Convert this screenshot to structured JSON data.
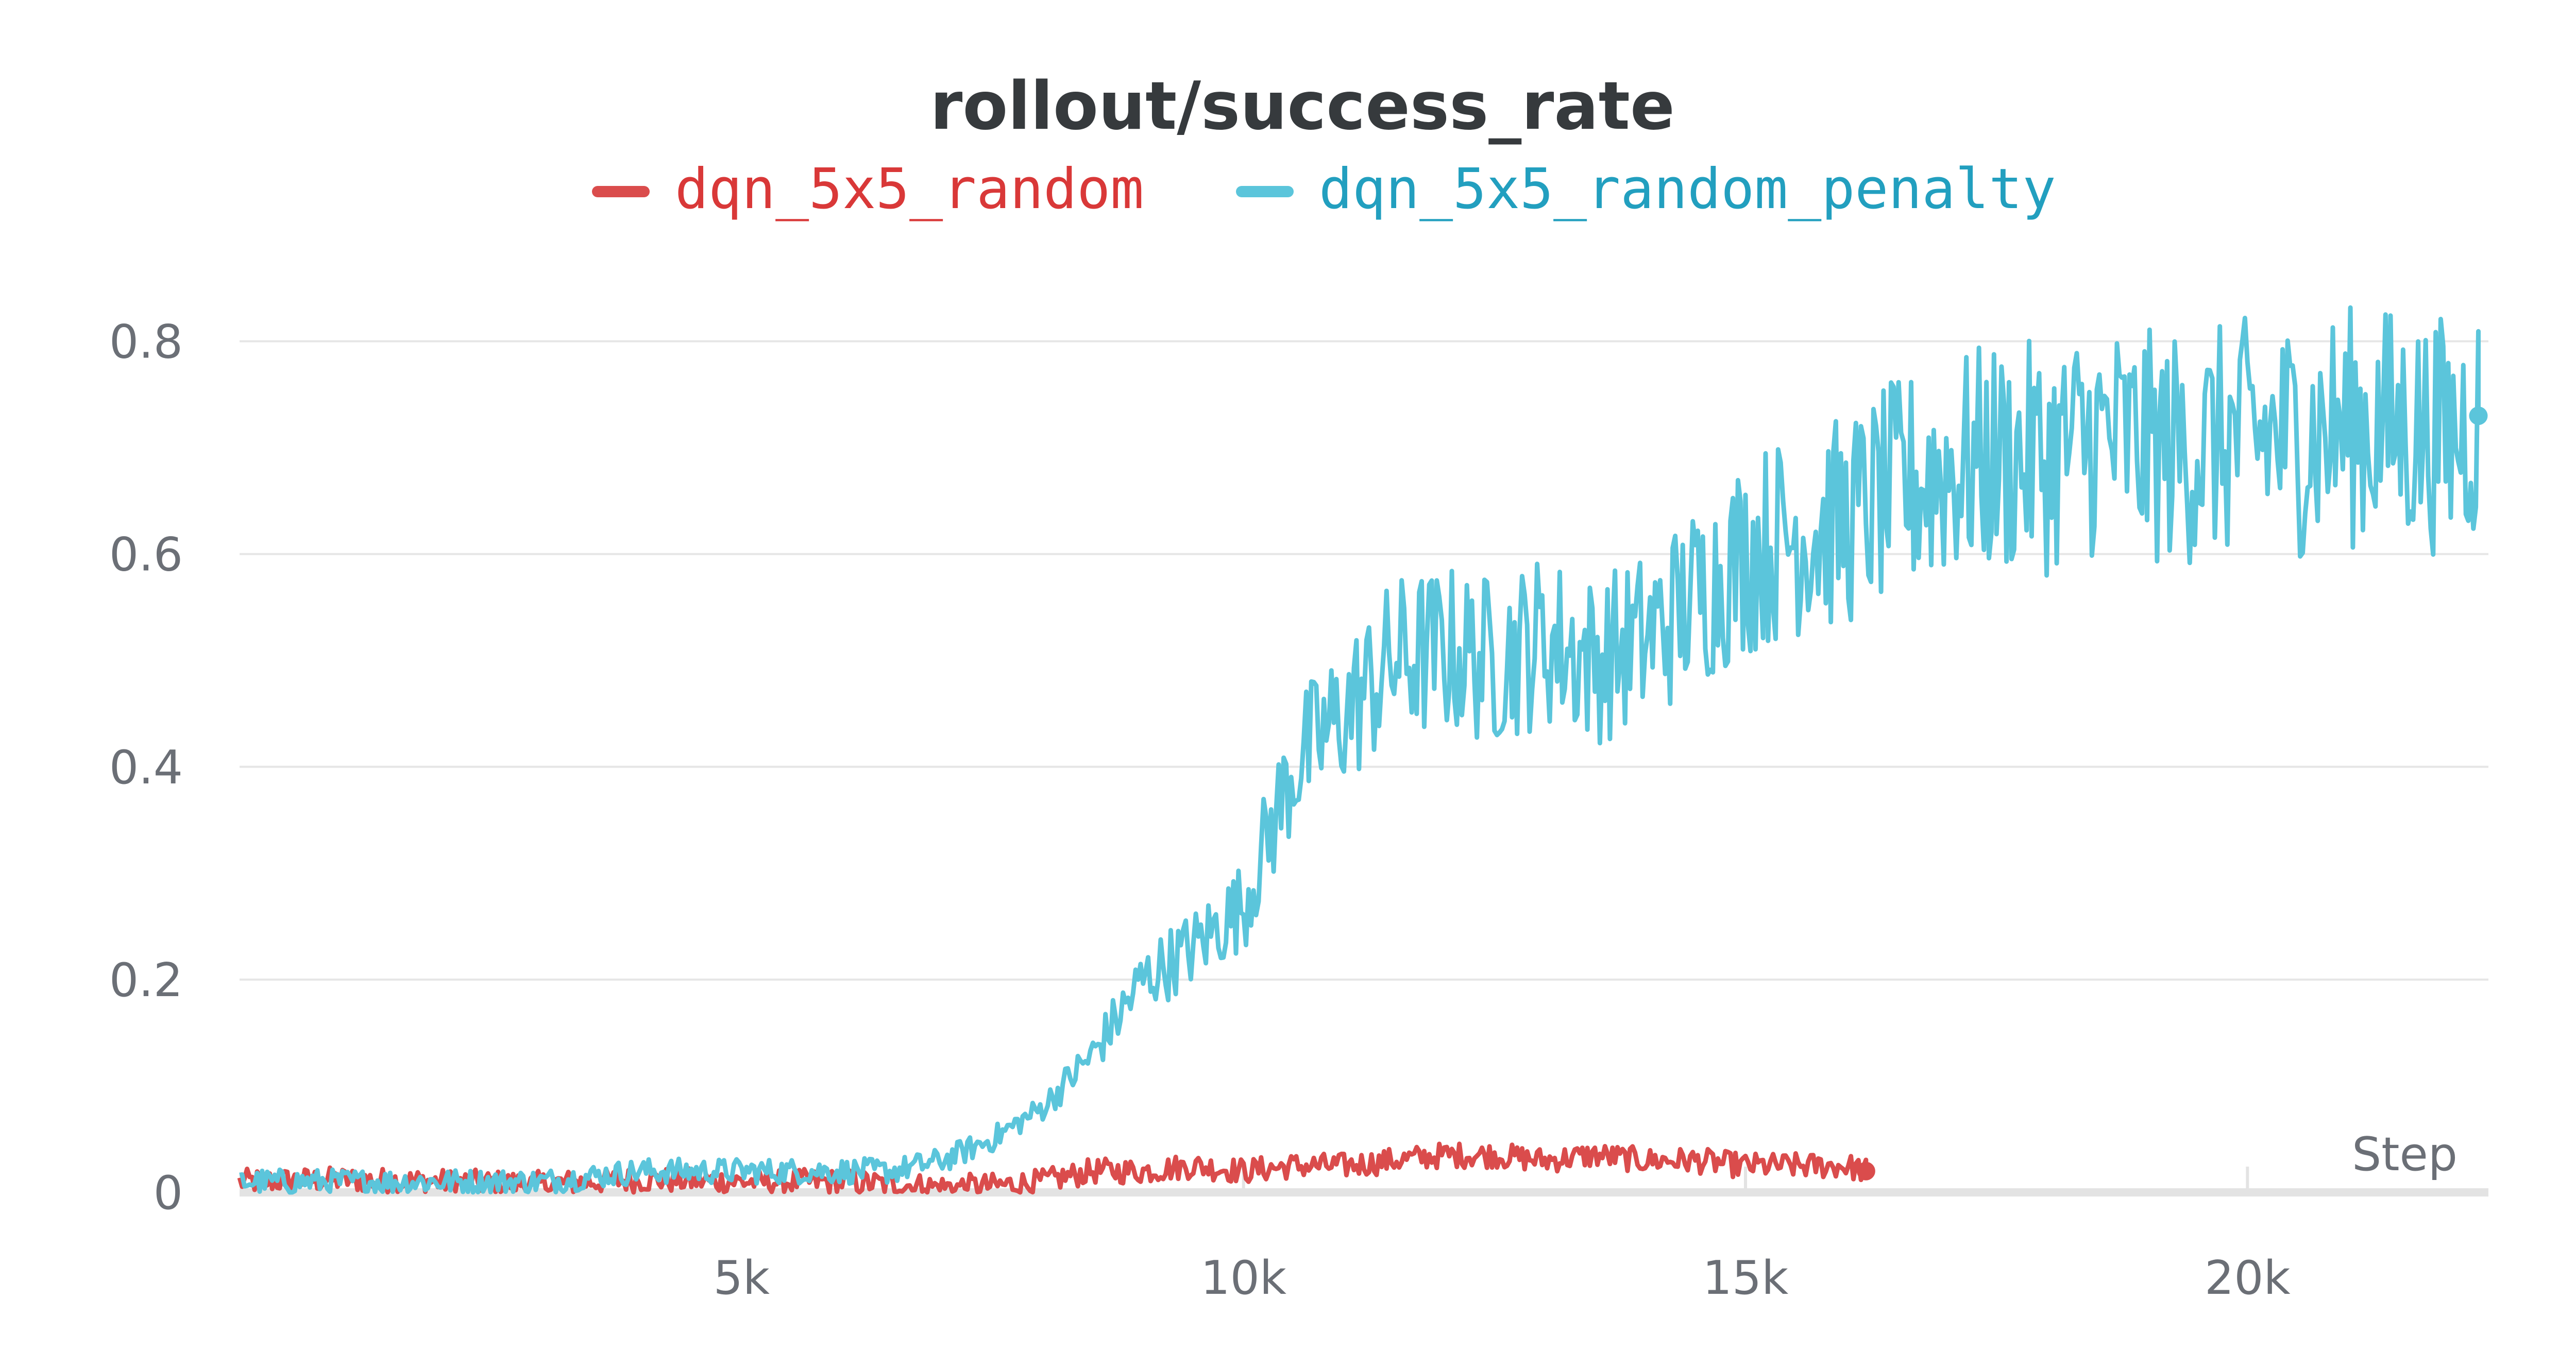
{
  "chart_data": {
    "type": "line",
    "title": "rollout/success_rate",
    "xlabel": "Step",
    "ylabel": "",
    "xlim": [
      0,
      22400
    ],
    "ylim": [
      0,
      0.84
    ],
    "y_ticks": [
      0,
      0.2,
      0.4,
      0.6,
      0.8
    ],
    "y_tick_labels": [
      "0",
      "0.2",
      "0.4",
      "0.6",
      "0.8"
    ],
    "x_ticks": [
      5000,
      10000,
      15000,
      20000
    ],
    "x_tick_labels": [
      "5k",
      "10k",
      "15k",
      "20k"
    ],
    "grid": true,
    "legend_position": "top",
    "series": [
      {
        "name": "dqn_5x5_random",
        "color": "#da4c4c",
        "legend_color": "#d93838",
        "x": [
          0,
          1000,
          2000,
          3000,
          4000,
          5000,
          6000,
          7000,
          7500,
          8000,
          8500,
          9000,
          9500,
          10000,
          10500,
          11000,
          11500,
          12000,
          12500,
          13000,
          13500,
          14000,
          14500,
          15000,
          15500,
          16000,
          16200
        ],
        "y": [
          0.01,
          0.012,
          0.01,
          0.008,
          0.012,
          0.01,
          0.01,
          0.005,
          0.006,
          0.01,
          0.02,
          0.02,
          0.025,
          0.02,
          0.025,
          0.025,
          0.03,
          0.035,
          0.035,
          0.03,
          0.035,
          0.03,
          0.03,
          0.025,
          0.025,
          0.025,
          0.02
        ]
      },
      {
        "name": "dqn_5x5_random_penalty",
        "color": "#5bc5db",
        "legend_color": "#229fbf",
        "x": [
          0,
          1000,
          2000,
          3000,
          4000,
          5000,
          6000,
          6500,
          7000,
          7500,
          8000,
          8500,
          9000,
          9500,
          10000,
          10500,
          11000,
          11500,
          12000,
          12500,
          13000,
          13500,
          14000,
          14500,
          15000,
          15500,
          16000,
          16500,
          17000,
          17500,
          18000,
          18500,
          19000,
          19500,
          20000,
          20500,
          21000,
          21500,
          22000,
          22300
        ],
        "y": [
          0.01,
          0.01,
          0.01,
          0.01,
          0.02,
          0.02,
          0.02,
          0.02,
          0.03,
          0.05,
          0.08,
          0.13,
          0.2,
          0.23,
          0.27,
          0.4,
          0.45,
          0.5,
          0.51,
          0.5,
          0.52,
          0.5,
          0.52,
          0.56,
          0.6,
          0.62,
          0.63,
          0.66,
          0.68,
          0.69,
          0.69,
          0.71,
          0.7,
          0.7,
          0.71,
          0.71,
          0.72,
          0.72,
          0.71,
          0.73
        ]
      }
    ]
  }
}
